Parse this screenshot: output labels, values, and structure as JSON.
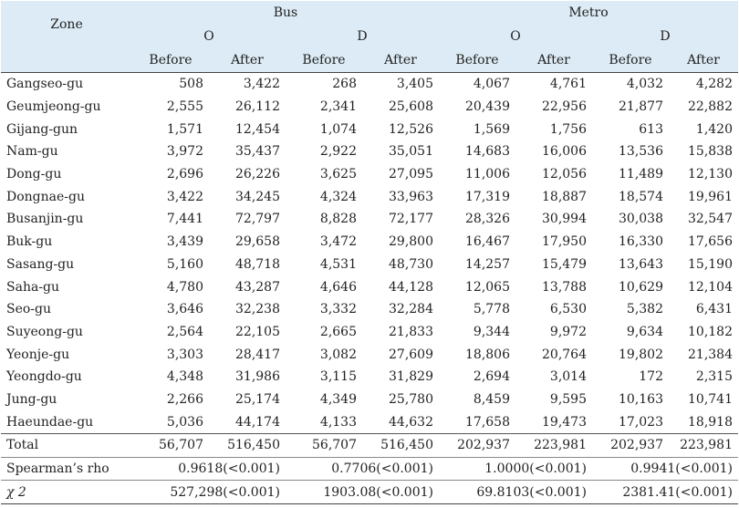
{
  "header": {
    "zone": "Zone",
    "bus": "Bus",
    "metro": "Metro",
    "o": "O",
    "d": "D",
    "before": "Before",
    "after": "After"
  },
  "rows": [
    {
      "zone": "Gangseo-gu",
      "v": [
        "508",
        "3,422",
        "268",
        "3,405",
        "4,067",
        "4,761",
        "4,032",
        "4,282"
      ]
    },
    {
      "zone": "Geumjeong-gu",
      "v": [
        "2,555",
        "26,112",
        "2,341",
        "25,608",
        "20,439",
        "22,956",
        "21,877",
        "22,882"
      ]
    },
    {
      "zone": "Gijang-gun",
      "v": [
        "1,571",
        "12,454",
        "1,074",
        "12,526",
        "1,569",
        "1,756",
        "613",
        "1,420"
      ]
    },
    {
      "zone": "Nam-gu",
      "v": [
        "3,972",
        "35,437",
        "2,922",
        "35,051",
        "14,683",
        "16,006",
        "13,536",
        "15,838"
      ]
    },
    {
      "zone": "Dong-gu",
      "v": [
        "2,696",
        "26,226",
        "3,625",
        "27,095",
        "11,006",
        "12,056",
        "11,489",
        "12,130"
      ]
    },
    {
      "zone": "Dongnae-gu",
      "v": [
        "3,422",
        "34,245",
        "4,324",
        "33,963",
        "17,319",
        "18,887",
        "18,574",
        "19,961"
      ]
    },
    {
      "zone": "Busanjin-gu",
      "v": [
        "7,441",
        "72,797",
        "8,828",
        "72,177",
        "28,326",
        "30,994",
        "30,038",
        "32,547"
      ]
    },
    {
      "zone": "Buk-gu",
      "v": [
        "3,439",
        "29,658",
        "3,472",
        "29,800",
        "16,467",
        "17,950",
        "16,330",
        "17,656"
      ]
    },
    {
      "zone": "Sasang-gu",
      "v": [
        "5,160",
        "48,718",
        "4,531",
        "48,730",
        "14,257",
        "15,479",
        "13,643",
        "15,190"
      ]
    },
    {
      "zone": "Saha-gu",
      "v": [
        "4,780",
        "43,287",
        "4,646",
        "44,128",
        "12,065",
        "13,788",
        "10,629",
        "12,104"
      ]
    },
    {
      "zone": "Seo-gu",
      "v": [
        "3,646",
        "32,238",
        "3,332",
        "32,284",
        "5,778",
        "6,530",
        "5,382",
        "6,431"
      ]
    },
    {
      "zone": "Suyeong-gu",
      "v": [
        "2,564",
        "22,105",
        "2,665",
        "21,833",
        "9,344",
        "9,972",
        "9,634",
        "10,182"
      ]
    },
    {
      "zone": "Yeonje-gu",
      "v": [
        "3,303",
        "28,417",
        "3,082",
        "27,609",
        "18,806",
        "20,764",
        "19,802",
        "21,384"
      ]
    },
    {
      "zone": "Yeongdo-gu",
      "v": [
        "4,348",
        "31,986",
        "3,115",
        "31,829",
        "2,694",
        "3,014",
        "172",
        "2,315"
      ]
    },
    {
      "zone": "Jung-gu",
      "v": [
        "2,266",
        "25,174",
        "4,349",
        "25,780",
        "8,459",
        "9,595",
        "10,163",
        "10,741"
      ]
    },
    {
      "zone": "Haeundae-gu",
      "v": [
        "5,036",
        "44,174",
        "4,133",
        "44,632",
        "17,658",
        "19,473",
        "17,023",
        "18,918"
      ]
    }
  ],
  "total": {
    "zone": "Total",
    "v": [
      "56,707",
      "516,450",
      "56,707",
      "516,450",
      "202,937",
      "223,981",
      "202,937",
      "223,981"
    ]
  },
  "spearman": {
    "label": "Spearman’s rho",
    "v": [
      "0.9618(<0.001)",
      "0.7706(<0.001)",
      "1.0000(<0.001)",
      "0.9941(<0.001)"
    ]
  },
  "chi2": {
    "label": "χ 2",
    "v": [
      "527,298(<0.001)",
      "1903.08(<0.001)",
      "69.8103(<0.001)",
      "2381.41(<0.001)"
    ]
  }
}
